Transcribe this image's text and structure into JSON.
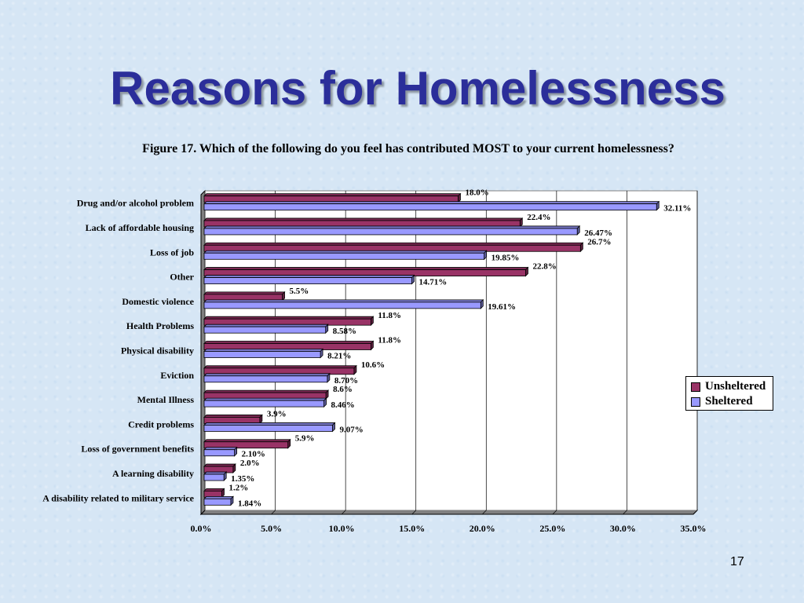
{
  "slide": {
    "title": "Reasons for Homelessness",
    "page_number": "17"
  },
  "chart_data": {
    "type": "bar",
    "orientation": "horizontal",
    "title": "Figure 17.  Which of the following do you feel has contributed MOST to your current homelessness?",
    "categories": [
      "Drug and/or alcohol problem",
      "Lack of affordable housing",
      "Loss of job",
      "Other",
      "Domestic violence",
      "Health Problems",
      "Physical disability",
      "Eviction",
      "Mental Illness",
      "Credit problems",
      "Loss of government benefits",
      "A learning disability",
      "A disability related to military service"
    ],
    "series": [
      {
        "name": "Unsheltered",
        "color": "#993366",
        "values": [
          18.0,
          22.4,
          26.7,
          22.8,
          5.5,
          11.8,
          11.8,
          10.6,
          8.6,
          3.9,
          5.9,
          2.0,
          1.2
        ],
        "labels": [
          "18.0%",
          "22.4%",
          "26.7%",
          "22.8%",
          "5.5%",
          "11.8%",
          "11.8%",
          "10.6%",
          "8.6%",
          "3.9%",
          "5.9%",
          "2.0%",
          "1.2%"
        ]
      },
      {
        "name": "Sheltered",
        "color": "#9999ff",
        "values": [
          32.11,
          26.47,
          19.85,
          14.71,
          19.61,
          8.58,
          8.21,
          8.7,
          8.46,
          9.07,
          2.1,
          1.35,
          1.84
        ],
        "labels": [
          "32.11%",
          "26.47%",
          "19.85%",
          "14.71%",
          "19.61%",
          "8.58%",
          "8.21%",
          "8.70%",
          "8.46%",
          "9.07%",
          "2.10%",
          "1.35%",
          "1.84%"
        ]
      }
    ],
    "xlim": [
      0,
      35
    ],
    "xticks": [
      "0.0%",
      "5.0%",
      "10.0%",
      "15.0%",
      "20.0%",
      "25.0%",
      "30.0%",
      "35.0%"
    ],
    "grid": true,
    "legend": "right"
  }
}
